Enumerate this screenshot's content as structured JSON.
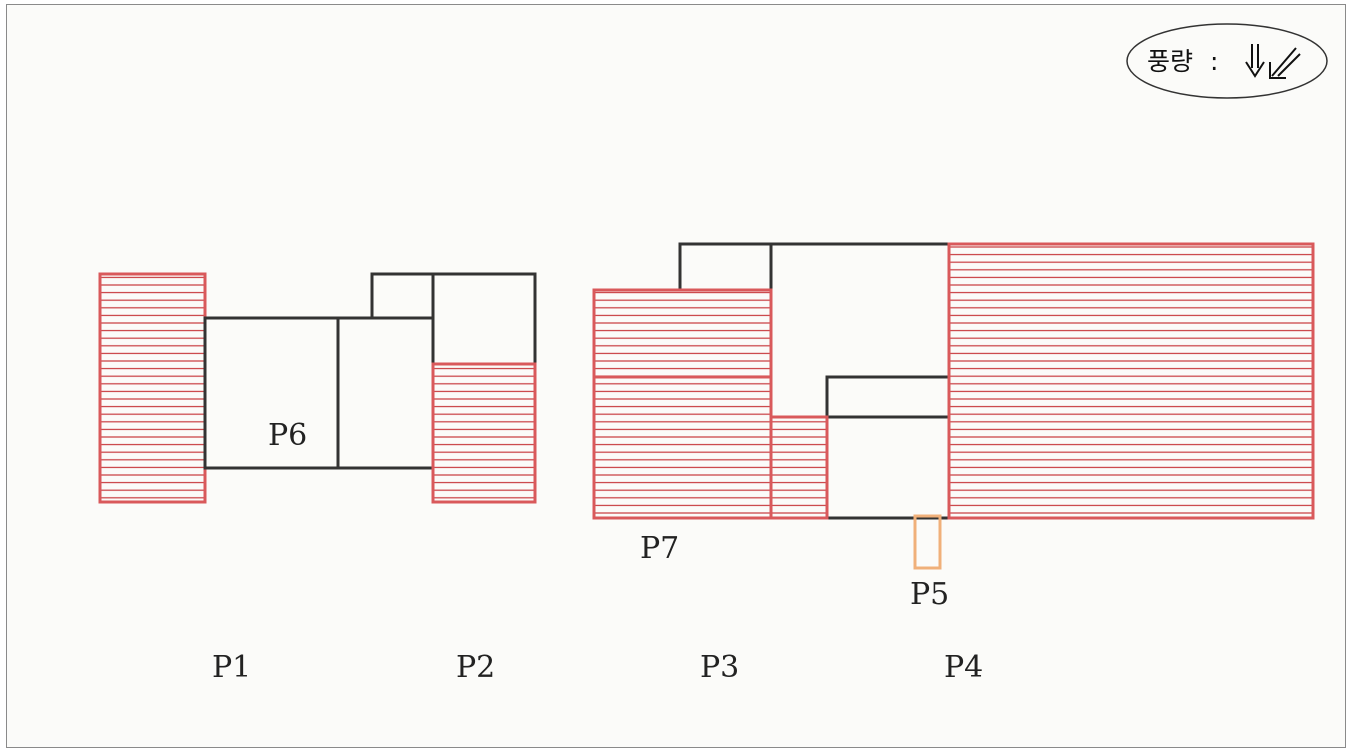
{
  "wind_legend": {
    "label": "풍량",
    "separator": ":",
    "symbols": "⇓⁄⁄"
  },
  "labels": {
    "p1": "P1",
    "p2": "P2",
    "p3": "P3",
    "p4": "P4",
    "p5": "P5",
    "p6": "P6",
    "p7": "P7"
  },
  "colors": {
    "hatch_red": "#d9595b",
    "hatch_line": "#c83a3e",
    "wall_black": "#333333",
    "p5_orange": "#f0b07a"
  }
}
